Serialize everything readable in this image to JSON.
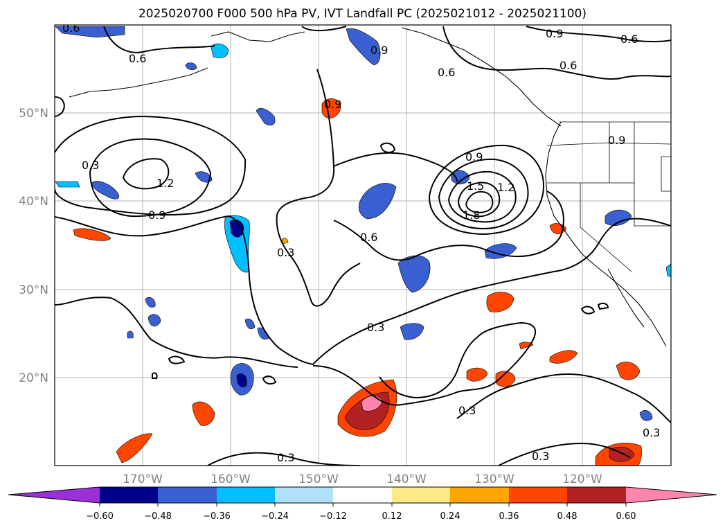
{
  "title": "2025020700 F000 500 hPa PV, IVT Landfall PC (2025021012 - 2025021100)",
  "longitude_labels": [
    "170°W",
    "160°W",
    "150°W",
    "140°W",
    "130°W",
    "120°W"
  ],
  "latitude_labels": [
    "50°N",
    "40°N",
    "30°N",
    "20°N"
  ],
  "colorbar": {
    "tick_labels": [
      "−0.60",
      "−0.48",
      "−0.36",
      "−0.24",
      "−0.12",
      "0.12",
      "0.24",
      "0.36",
      "0.48",
      "0.60"
    ],
    "colors": [
      "#9b30d9",
      "#00008b",
      "#3a5fd0",
      "#00bfff",
      "#b0e0fa",
      "#ffffff",
      "#fce98a",
      "#ffa500",
      "#ff4500",
      "#b22222",
      "#ff85ad"
    ]
  },
  "contour_labels": [
    "0.6",
    "0.9",
    "0.6",
    "0.6",
    "0.9",
    "0.6",
    "0.9",
    "0.9",
    "0.6",
    "1.2",
    "0.9",
    "0.9",
    "1.5",
    "1.2",
    "1.8",
    "0.6",
    "0.3",
    "0.3",
    "0.3",
    "0.3",
    "0.3",
    "0.3",
    "0.3"
  ],
  "chart_data": {
    "type": "map",
    "title": "2025020700 F000 500 hPa PV, IVT Landfall PC (2025021012 - 2025021100)",
    "extent": {
      "lon": [
        -180,
        -110
      ],
      "lat": [
        10,
        60
      ]
    },
    "colorbar_levels": [
      -0.6,
      -0.48,
      -0.36,
      -0.24,
      -0.12,
      0.12,
      0.24,
      0.36,
      0.48,
      0.6
    ],
    "contour_levels": [
      0.3,
      0.6,
      0.9,
      1.2,
      1.5,
      1.8
    ],
    "grid": true
  }
}
